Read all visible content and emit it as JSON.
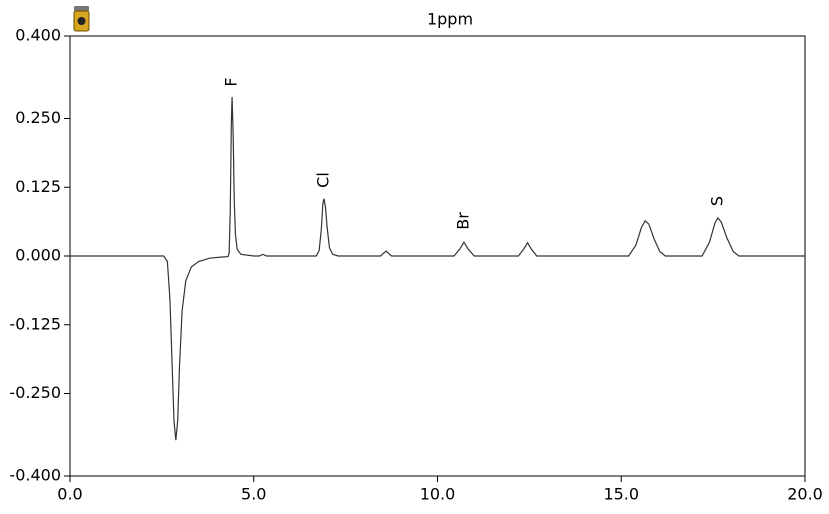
{
  "chart_data": {
    "type": "line",
    "title": "1ppm",
    "annotations": [
      "F",
      "Cl",
      "Br",
      "S"
    ],
    "x": [
      0.0,
      2.55,
      2.65,
      2.72,
      2.78,
      2.83,
      2.88,
      2.93,
      2.98,
      3.05,
      3.15,
      3.3,
      3.5,
      3.8,
      4.1,
      4.3,
      4.33,
      4.36,
      4.39,
      4.41,
      4.44,
      4.47,
      4.5,
      4.55,
      4.65,
      5.0,
      5.15,
      5.25,
      5.35,
      6.7,
      6.78,
      6.84,
      6.88,
      6.91,
      6.95,
      7.0,
      7.06,
      7.15,
      7.3,
      8.45,
      8.6,
      8.75,
      10.45,
      10.6,
      10.72,
      10.84,
      11.0,
      12.2,
      12.35,
      12.45,
      12.55,
      12.7,
      15.2,
      15.4,
      15.55,
      15.65,
      15.75,
      15.9,
      16.05,
      16.2,
      17.2,
      17.4,
      17.55,
      17.63,
      17.72,
      17.88,
      18.05,
      18.2,
      20.0
    ],
    "series": [
      {
        "color": "#333333",
        "values": [
          0,
          0,
          -0.01,
          -0.08,
          -0.2,
          -0.3,
          -0.335,
          -0.3,
          -0.2,
          -0.1,
          -0.045,
          -0.02,
          -0.01,
          -0.004,
          -0.002,
          -0.001,
          0.005,
          0.08,
          0.24,
          0.289,
          0.22,
          0.1,
          0.04,
          0.012,
          0.003,
          0,
          0,
          0.003,
          0,
          0,
          0.01,
          0.05,
          0.095,
          0.104,
          0.09,
          0.05,
          0.015,
          0.003,
          0,
          0,
          0.009,
          0,
          0,
          0.012,
          0.025,
          0.012,
          0,
          0,
          0.013,
          0.024,
          0.013,
          0,
          0,
          0.02,
          0.052,
          0.064,
          0.058,
          0.03,
          0.008,
          0,
          0,
          0.025,
          0.06,
          0.069,
          0.062,
          0.032,
          0.008,
          0,
          0
        ]
      }
    ],
    "xlim": [
      0,
      20
    ],
    "xticks": [
      {
        "value": 0,
        "label": "0.0"
      },
      {
        "value": 5,
        "label": "5.0"
      },
      {
        "value": 10,
        "label": "10.0"
      },
      {
        "value": 15,
        "label": "15.0"
      },
      {
        "value": 20,
        "label": "20.0"
      }
    ],
    "ylim": [
      -0.4,
      0.4
    ],
    "yticks": [
      {
        "value": 0.4,
        "label": "0.400"
      },
      {
        "value": 0.25,
        "label": "0.250"
      },
      {
        "value": 0.125,
        "label": "0.125"
      },
      {
        "value": 0,
        "label": "0.000"
      },
      {
        "value": -0.125,
        "label": "-0.125"
      },
      {
        "value": -0.25,
        "label": "-0.250"
      },
      {
        "value": -0.4,
        "label": "-0.400"
      }
    ],
    "grid": false
  }
}
